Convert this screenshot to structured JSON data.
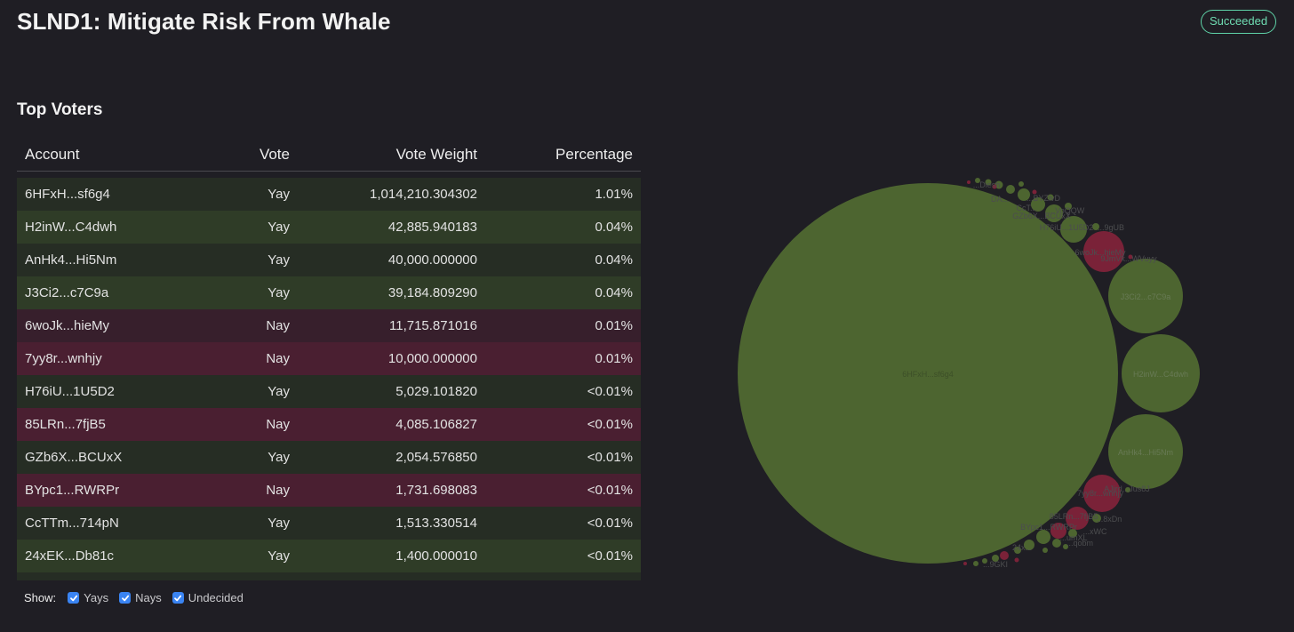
{
  "header": {
    "title": "SLND1: Mitigate Risk From Whale",
    "status": "Succeeded",
    "status_color": "#5fd3a8"
  },
  "top_voters": {
    "title": "Top Voters",
    "columns": [
      "Account",
      "Vote",
      "Vote Weight",
      "Percentage"
    ],
    "rows": [
      {
        "account": "6HFxH...sf6g4",
        "vote": "Yay",
        "weight": "1,014,210.304302",
        "pct": "1.01%"
      },
      {
        "account": "H2inW...C4dwh",
        "vote": "Yay",
        "weight": "42,885.940183",
        "pct": "0.04%"
      },
      {
        "account": "AnHk4...Hi5Nm",
        "vote": "Yay",
        "weight": "40,000.000000",
        "pct": "0.04%"
      },
      {
        "account": "J3Ci2...c7C9a",
        "vote": "Yay",
        "weight": "39,184.809290",
        "pct": "0.04%"
      },
      {
        "account": "6woJk...hieMy",
        "vote": "Nay",
        "weight": "11,715.871016",
        "pct": "0.01%"
      },
      {
        "account": "7yy8r...wnhjy",
        "vote": "Nay",
        "weight": "10,000.000000",
        "pct": "0.01%"
      },
      {
        "account": "H76iU...1U5D2",
        "vote": "Yay",
        "weight": "5,029.101820",
        "pct": "<0.01%"
      },
      {
        "account": "85LRn...7fjB5",
        "vote": "Nay",
        "weight": "4,085.106827",
        "pct": "<0.01%"
      },
      {
        "account": "GZb6X...BCUxX",
        "vote": "Yay",
        "weight": "2,054.576850",
        "pct": "<0.01%"
      },
      {
        "account": "BYpc1...RWRPr",
        "vote": "Nay",
        "weight": "1,731.698083",
        "pct": "<0.01%"
      },
      {
        "account": "CcTTm...714pN",
        "vote": "Yay",
        "weight": "1,513.330514",
        "pct": "<0.01%"
      },
      {
        "account": "24xEK...Db81c",
        "vote": "Yay",
        "weight": "1,400.000010",
        "pct": "<0.01%"
      },
      {
        "account": "",
        "vote": "",
        "weight": "",
        "pct": ""
      }
    ]
  },
  "filters": {
    "label": "Show:",
    "options": [
      {
        "label": "Yays",
        "checked": true
      },
      {
        "label": "Nays",
        "checked": true
      },
      {
        "label": "Undecided",
        "checked": true
      }
    ]
  },
  "colors": {
    "yay": "#4d6530",
    "nay": "#7a2238",
    "background": "#1f1e24",
    "checkbox": "#3a84f2"
  },
  "bubble_chart": {
    "labels": {
      "big": "6HFxH...sf6g4",
      "h2": "H2inW...C4dwh",
      "an": "AnHk4...Hi5Nm",
      "j3": "J3Ci2...c7C9a",
      "wo": "6woJk...hieMy",
      "yy": "7yy8r...wnhjy",
      "h76": "H76iU...1U5D2",
      "gzb": "GZb6X...BCUxX",
      "ccT": "CcT...",
      "da": "DA...",
      "s9": "9JmVk...WVuyy",
      "aj": "AJjrd...Jus8J",
      "l85": "85LRn...7fjB5",
      "byp": "BYpc1...RWRPr",
      "ugb": "...9gUB",
      "qqw": "...VoQQW",
      "zyd": "...BYZivD",
      "dsh": "...Diesh",
      "xdn": "...8xDn",
      "wc": "...xWC",
      "bm": "...qobm",
      "l24": "24x...",
      "g": "...9GKI",
      "mxl": "...umXL"
    }
  }
}
